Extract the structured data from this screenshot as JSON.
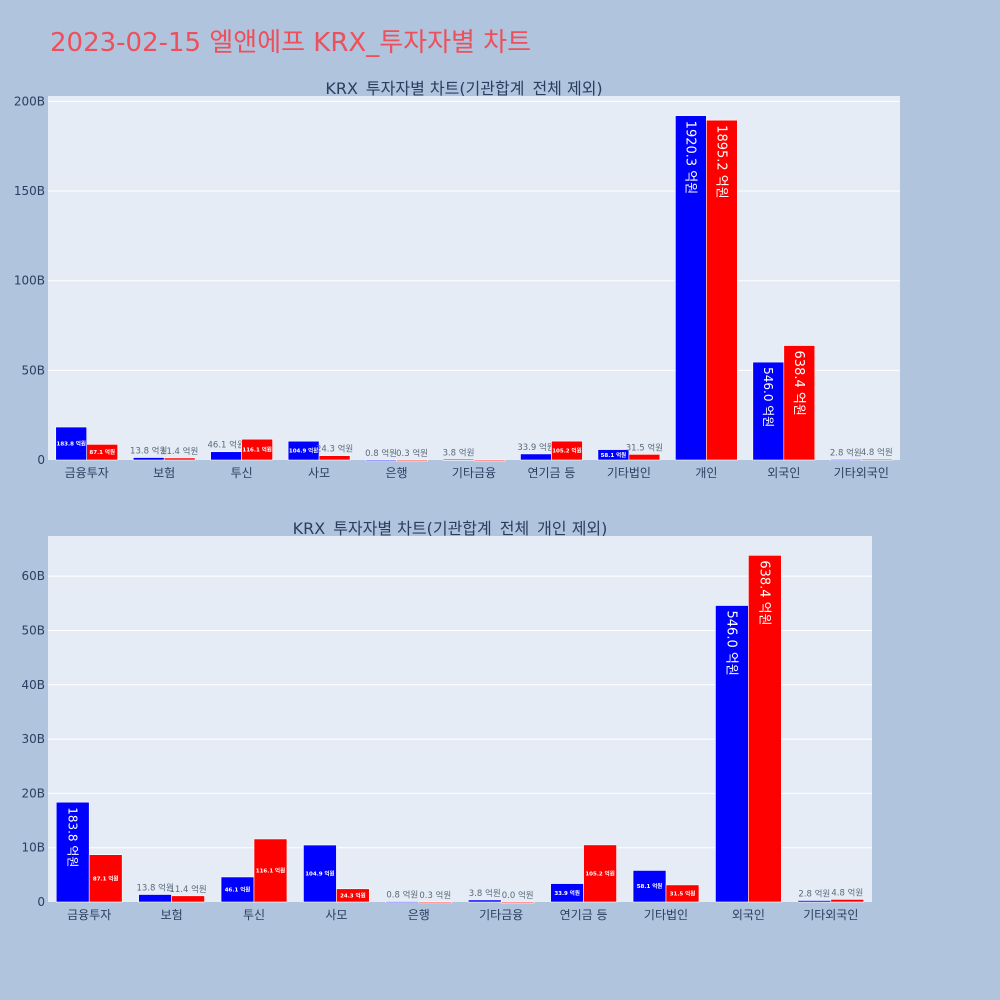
{
  "title": "2023-02-15 엘앤에프 KRX_투자자별 차트",
  "colors": {
    "background": "#b0c4de",
    "plot_bg": "#e5ecf6",
    "title": "#ef4f5a",
    "buy": "#0000ff",
    "sell": "#ff0000"
  },
  "chart_data": [
    {
      "type": "bar",
      "title": "KRX_투자자별 차트(기관합계_전체 제외)",
      "categories": [
        "금융투자",
        "보험",
        "투신",
        "사모",
        "은행",
        "기타금융",
        "연기금 등",
        "기타법인",
        "개인",
        "외국인",
        "기타외국인"
      ],
      "y_tick_labels": [
        "0",
        "50B",
        "100B",
        "150B",
        "200B"
      ],
      "ylim": [
        0,
        203000000000
      ],
      "grid": true,
      "series": [
        {
          "color": "#0000ff",
          "values": [
            18380000000,
            1380000000,
            4610000000,
            10490000000,
            80000000,
            380000000,
            3390000000,
            5810000000,
            192030000000,
            54600000000,
            280000000
          ],
          "labels": [
            "183.8 억원",
            "13.8 억원",
            "46.1 억원",
            "104.9 억원",
            "0.8 억원",
            "3.8 억원",
            "33.9 억원",
            "58.1 억원",
            "1920.3 억원",
            "546.0 억원",
            "2.8 억원"
          ]
        },
        {
          "color": "#ff0000",
          "values": [
            8710000000,
            1140000000,
            11610000000,
            2430000000,
            30000000,
            0,
            10520000000,
            3150000000,
            189520000000,
            63840000000,
            480000000
          ],
          "labels": [
            "87.1 억원",
            "11.4 억원",
            "116.1 억원",
            "24.3 억원",
            "0.3 억원",
            "",
            "105.2 억원",
            "31.5 억원",
            "1895.2 억원",
            "638.4 억원",
            "4.8 억원"
          ]
        }
      ]
    },
    {
      "type": "bar",
      "title": "KRX_투자자별 차트(기관합계_전체_개인 제외)",
      "categories": [
        "금융투자",
        "보험",
        "투신",
        "사모",
        "은행",
        "기타금융",
        "연기금 등",
        "기타법인",
        "외국인",
        "기타외국인"
      ],
      "y_tick_labels": [
        "0",
        "10B",
        "20B",
        "30B",
        "40B",
        "50B",
        "60B"
      ],
      "ylim": [
        0,
        67400000000
      ],
      "grid": true,
      "series": [
        {
          "color": "#0000ff",
          "values": [
            18380000000,
            1380000000,
            4610000000,
            10490000000,
            80000000,
            380000000,
            3390000000,
            5810000000,
            54600000000,
            280000000
          ],
          "labels": [
            "183.8 억원",
            "13.8 억원",
            "46.1 억원",
            "104.9 억원",
            "0.8 억원",
            "3.8 억원",
            "33.9 억원",
            "58.1 억원",
            "546.0 억원",
            "2.8 억원"
          ]
        },
        {
          "color": "#ff0000",
          "values": [
            8710000000,
            1140000000,
            11610000000,
            2430000000,
            30000000,
            0,
            10520000000,
            3150000000,
            63840000000,
            480000000
          ],
          "labels": [
            "87.1 억원",
            "11.4 억원",
            "116.1 억원",
            "24.3 억원",
            "0.3 억원",
            "0.0 억원",
            "105.2 억원",
            "31.5 억원",
            "638.4 억원",
            "4.8 억원"
          ]
        }
      ]
    }
  ]
}
